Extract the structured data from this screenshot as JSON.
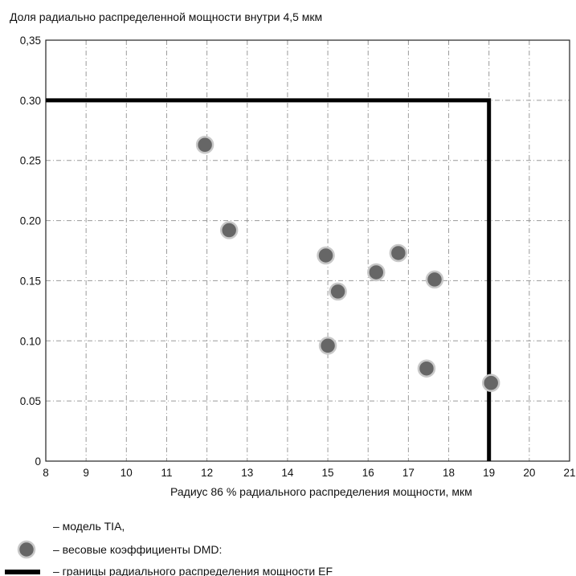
{
  "chart_data": {
    "type": "scatter",
    "title": "Доля радиально распределенной мощности внутри 4,5 мкм",
    "xlabel": "Радиус 86 % радиального распределения мощности, мкм",
    "ylabel": "",
    "xlim": [
      8,
      21
    ],
    "ylim": [
      0,
      0.35
    ],
    "x_ticks": [
      "8",
      "9",
      "10",
      "11",
      "12",
      "13",
      "14",
      "15",
      "16",
      "17",
      "18",
      "19",
      "20",
      "21"
    ],
    "y_ticks": [
      {
        "value": 0,
        "label": "0"
      },
      {
        "value": 0.05,
        "label": "0.05"
      },
      {
        "value": 0.1,
        "label": "0.10"
      },
      {
        "value": 0.15,
        "label": "0.15"
      },
      {
        "value": 0.2,
        "label": "0.20"
      },
      {
        "value": 0.25,
        "label": "0.25"
      },
      {
        "value": 0.3,
        "label": "0.30"
      },
      {
        "value": 0.35,
        "label": "0,35"
      }
    ],
    "grid": true,
    "series": [
      {
        "name": "– весовые коэффициенты DMD:",
        "type": "scatter",
        "points": [
          {
            "x": 11.95,
            "y": 0.263
          },
          {
            "x": 12.55,
            "y": 0.192
          },
          {
            "x": 14.95,
            "y": 0.171
          },
          {
            "x": 15.0,
            "y": 0.096
          },
          {
            "x": 15.25,
            "y": 0.141
          },
          {
            "x": 16.2,
            "y": 0.157
          },
          {
            "x": 16.75,
            "y": 0.173
          },
          {
            "x": 17.45,
            "y": 0.077
          },
          {
            "x": 17.65,
            "y": 0.151
          },
          {
            "x": 19.05,
            "y": 0.065
          }
        ]
      },
      {
        "name": "– границы радиального распределения мощности EF",
        "type": "line",
        "points": [
          {
            "x": 8,
            "y": 0.3
          },
          {
            "x": 19,
            "y": 0.3
          },
          {
            "x": 19,
            "y": 0
          }
        ]
      }
    ],
    "legend": {
      "placement": "bottom-left",
      "entries": [
        {
          "symbol": "none",
          "label": "– модель TIA,"
        },
        {
          "symbol": "circle",
          "label": "– весовые коэффициенты DMD:"
        },
        {
          "symbol": "thick-line",
          "label": "– границы радиального распределения мощности EF"
        }
      ]
    }
  }
}
